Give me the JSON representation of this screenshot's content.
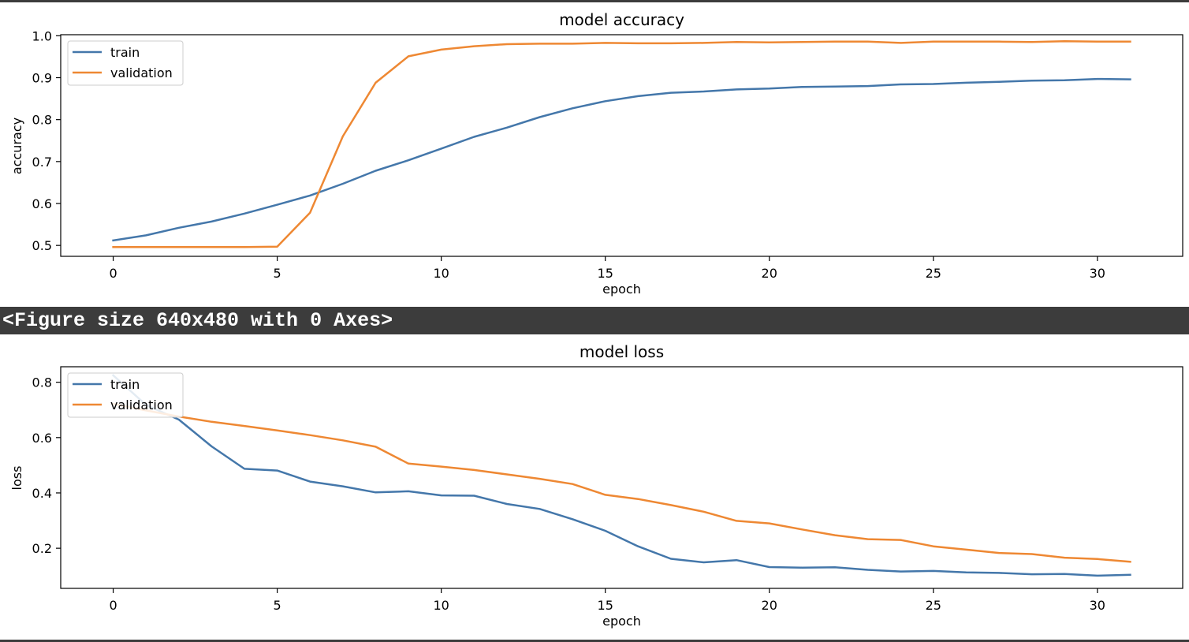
{
  "output": {
    "figure_text": "<Figure size 640x480 with 0 Axes>"
  },
  "colors": {
    "train": "#4477aa",
    "validation": "#ee8833",
    "output_bg": "#3c3c3c",
    "output_text": "#ffffff"
  },
  "chart_data": [
    {
      "type": "line",
      "title": "model accuracy",
      "xlabel": "epoch",
      "ylabel": "accuracy",
      "xlim": [
        -1.6,
        32.6
      ],
      "ylim": [
        0.474,
        1.0025
      ],
      "xticks": [
        0,
        5,
        10,
        15,
        20,
        25,
        30
      ],
      "xtick_labels": [
        "0",
        "5",
        "10",
        "15",
        "20",
        "25",
        "30"
      ],
      "yticks": [
        0.5,
        0.6,
        0.7,
        0.8,
        0.9,
        1.0
      ],
      "ytick_labels": [
        "0.5",
        "0.6",
        "0.7",
        "0.8",
        "0.9",
        "1.0"
      ],
      "legend": {
        "position": "upper left",
        "entries": [
          "train",
          "validation"
        ]
      },
      "grid": false,
      "x": [
        0,
        1,
        2,
        3,
        4,
        5,
        6,
        7,
        8,
        9,
        10,
        11,
        12,
        13,
        14,
        15,
        16,
        17,
        18,
        19,
        20,
        21,
        22,
        23,
        24,
        25,
        26,
        27,
        28,
        29,
        30,
        31
      ],
      "series": [
        {
          "name": "train",
          "color": "#4477aa",
          "values": [
            0.512,
            0.524,
            0.542,
            0.557,
            0.576,
            0.597,
            0.619,
            0.647,
            0.678,
            0.703,
            0.731,
            0.759,
            0.781,
            0.806,
            0.827,
            0.844,
            0.856,
            0.864,
            0.867,
            0.872,
            0.874,
            0.878,
            0.879,
            0.88,
            0.884,
            0.885,
            0.888,
            0.89,
            0.893,
            0.894,
            0.897,
            0.896
          ]
        },
        {
          "name": "validation",
          "color": "#ee8833",
          "values": [
            0.496,
            0.496,
            0.496,
            0.496,
            0.496,
            0.497,
            0.578,
            0.76,
            0.888,
            0.951,
            0.967,
            0.975,
            0.98,
            0.981,
            0.981,
            0.983,
            0.982,
            0.982,
            0.983,
            0.985,
            0.984,
            0.985,
            0.986,
            0.986,
            0.983,
            0.986,
            0.986,
            0.986,
            0.985,
            0.987,
            0.986,
            0.986
          ]
        }
      ]
    },
    {
      "type": "line",
      "title": "model loss",
      "xlabel": "epoch",
      "ylabel": "loss",
      "xlim": [
        -1.6,
        32.6
      ],
      "ylim": [
        0.055,
        0.856
      ],
      "xticks": [
        0,
        5,
        10,
        15,
        20,
        25,
        30
      ],
      "xtick_labels": [
        "0",
        "5",
        "10",
        "15",
        "20",
        "25",
        "30"
      ],
      "yticks": [
        0.2,
        0.4,
        0.6,
        0.8
      ],
      "ytick_labels": [
        "0.2",
        "0.4",
        "0.6",
        "0.8"
      ],
      "legend": {
        "position": "upper left",
        "entries": [
          "train",
          "validation"
        ]
      },
      "grid": false,
      "x": [
        0,
        1,
        2,
        3,
        4,
        5,
        6,
        7,
        8,
        9,
        10,
        11,
        12,
        13,
        14,
        15,
        16,
        17,
        18,
        19,
        20,
        21,
        22,
        23,
        24,
        25,
        26,
        27,
        28,
        29,
        30,
        31
      ],
      "series": [
        {
          "name": "train",
          "color": "#4477aa",
          "values": [
            0.825,
            0.718,
            0.665,
            0.568,
            0.487,
            0.481,
            0.441,
            0.424,
            0.402,
            0.406,
            0.391,
            0.39,
            0.36,
            0.342,
            0.305,
            0.263,
            0.207,
            0.162,
            0.149,
            0.157,
            0.132,
            0.13,
            0.131,
            0.122,
            0.116,
            0.118,
            0.113,
            0.111,
            0.106,
            0.107,
            0.101,
            0.104
          ]
        },
        {
          "name": "validation",
          "color": "#ee8833",
          "values": [
            0.722,
            0.698,
            0.676,
            0.657,
            0.642,
            0.626,
            0.609,
            0.59,
            0.567,
            0.506,
            0.495,
            0.483,
            0.467,
            0.451,
            0.432,
            0.393,
            0.378,
            0.356,
            0.332,
            0.299,
            0.29,
            0.268,
            0.247,
            0.233,
            0.23,
            0.207,
            0.195,
            0.183,
            0.179,
            0.166,
            0.161,
            0.151
          ]
        }
      ]
    }
  ]
}
